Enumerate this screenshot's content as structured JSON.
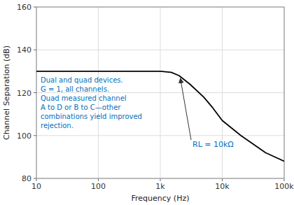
{
  "chart_data": {
    "type": "line",
    "log": "x",
    "grid": true,
    "xlabel": "Frequency (Hz)",
    "ylabel": "Channel Separation (dB)",
    "xlim": [
      10,
      100000
    ],
    "ylim": [
      80,
      160
    ],
    "xticks": [
      10,
      100,
      {
        "value": 1000,
        "label": "1k"
      },
      {
        "value": 10000,
        "label": "10k"
      },
      {
        "value": 100000,
        "label": "100k"
      }
    ],
    "yticks": [
      80,
      100,
      120,
      140,
      160
    ],
    "x": [
      10,
      100,
      500,
      1000,
      1500,
      2000,
      3000,
      5000,
      7000,
      10000,
      20000,
      50000,
      100000
    ],
    "values": [
      130,
      130,
      130,
      130,
      129.5,
      128,
      124,
      118,
      113,
      107,
      100,
      92,
      88
    ],
    "color": "#000000",
    "annotations": [
      {
        "text": "Dual and quad devices.\nG = 1,  all channels.\nQuad measured channel\nA to D or B to C—other\ncombinations yield improved\nrejection.",
        "color": "#0070c0"
      },
      {
        "text": "RL = 10kΩ",
        "color": "#0070c0"
      }
    ]
  }
}
